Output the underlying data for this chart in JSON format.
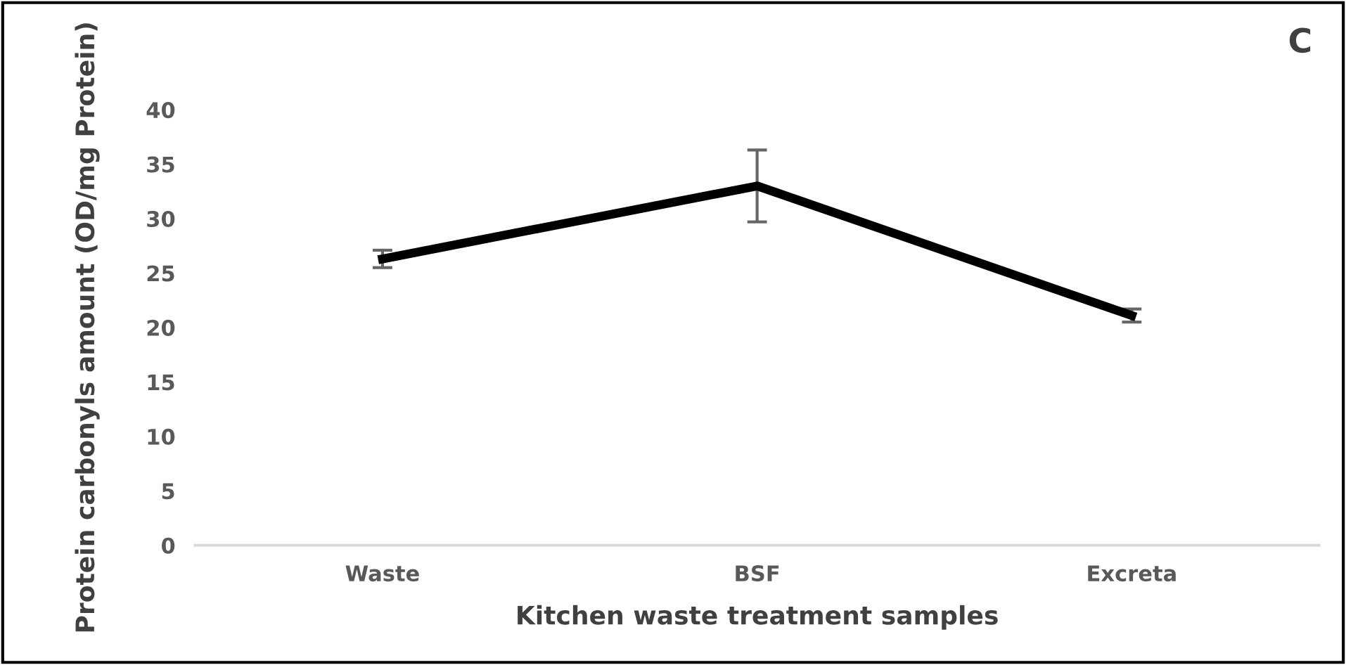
{
  "chart_data": {
    "type": "line",
    "xlabel": "Kitchen waste treatment samples",
    "ylabel": "Protein carbonyls amount (OD/mg Protein)",
    "annotations": [
      "C"
    ],
    "categories": [
      "Waste",
      "BSF",
      "Excreta"
    ],
    "series": [
      {
        "color": "#000000",
        "values": [
          26.3,
          33.0,
          21.1
        ],
        "errors": [
          0.8,
          3.3,
          0.6
        ]
      }
    ],
    "ylim": [
      0,
      40
    ],
    "yticks": [
      0,
      5,
      10,
      15,
      20,
      25,
      30,
      35,
      40
    ],
    "grid": false,
    "marker": "none",
    "line_style": "solid"
  }
}
